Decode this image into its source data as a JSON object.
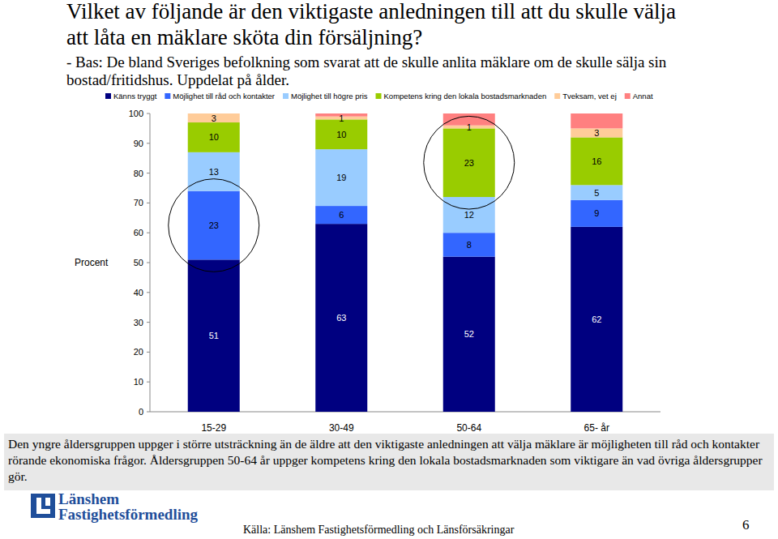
{
  "chart_data": {
    "type": "bar",
    "stacked": true,
    "data_labels": true,
    "grid": false,
    "title": "Vilket av följande är den viktigaste anledningen till att du skulle välja att låta en mäklare sköta din försäljning?",
    "subtitle": "- Bas: De bland Sveriges befolkning som svarat att de skulle anlita mäklare om de skulle sälja sin bostad/fritidshus. Uppdelat på ålder.",
    "y_label": "Procent",
    "categories": [
      "15-29",
      "30-49",
      "50-64",
      "65- år"
    ],
    "series": [
      {
        "name": "Känns tryggt",
        "color": "#000080",
        "values": [
          51,
          63,
          52,
          62
        ]
      },
      {
        "name": "Möjlighet till råd och kontakter",
        "color": "#3366ff",
        "values": [
          23,
          6,
          8,
          9
        ]
      },
      {
        "name": "Möjlighet till högre pris",
        "color": "#99ccff",
        "values": [
          13,
          19,
          12,
          5
        ]
      },
      {
        "name": "Kompetens kring den lokala bostadsmarknaden",
        "color": "#99cc00",
        "values": [
          10,
          10,
          23,
          16
        ]
      },
      {
        "name": "Tveksam, vet ej",
        "color": "#ffcc99",
        "values": [
          3,
          1,
          1,
          3
        ]
      },
      {
        "name": "Annat",
        "color": "#ff8080",
        "values": [
          0,
          1,
          4,
          5
        ],
        "value_labels": [
          null,
          null,
          null,
          null
        ]
      }
    ],
    "ylim": [
      0,
      100
    ],
    "yticks": [
      0,
      10,
      20,
      30,
      40,
      50,
      60,
      70,
      80,
      90,
      100
    ],
    "legend": "top"
  },
  "note": "Den yngre åldersgruppen uppger i större utsträckning än de äldre att den viktigaste anledningen att välja mäklare är möjligheten till råd och kontakter rörande ekonomiska frågor. Åldersgruppen 50-64 år uppger kompetens kring den lokala bostadsmarknaden som viktigare än vad övriga åldersgrupper gör.",
  "logo": [
    "Länshem",
    "Fastighetsförmedling"
  ],
  "source": "Källa: Länshem Fastighetsförmedling och Länsförsäkringar",
  "page_number": "6"
}
